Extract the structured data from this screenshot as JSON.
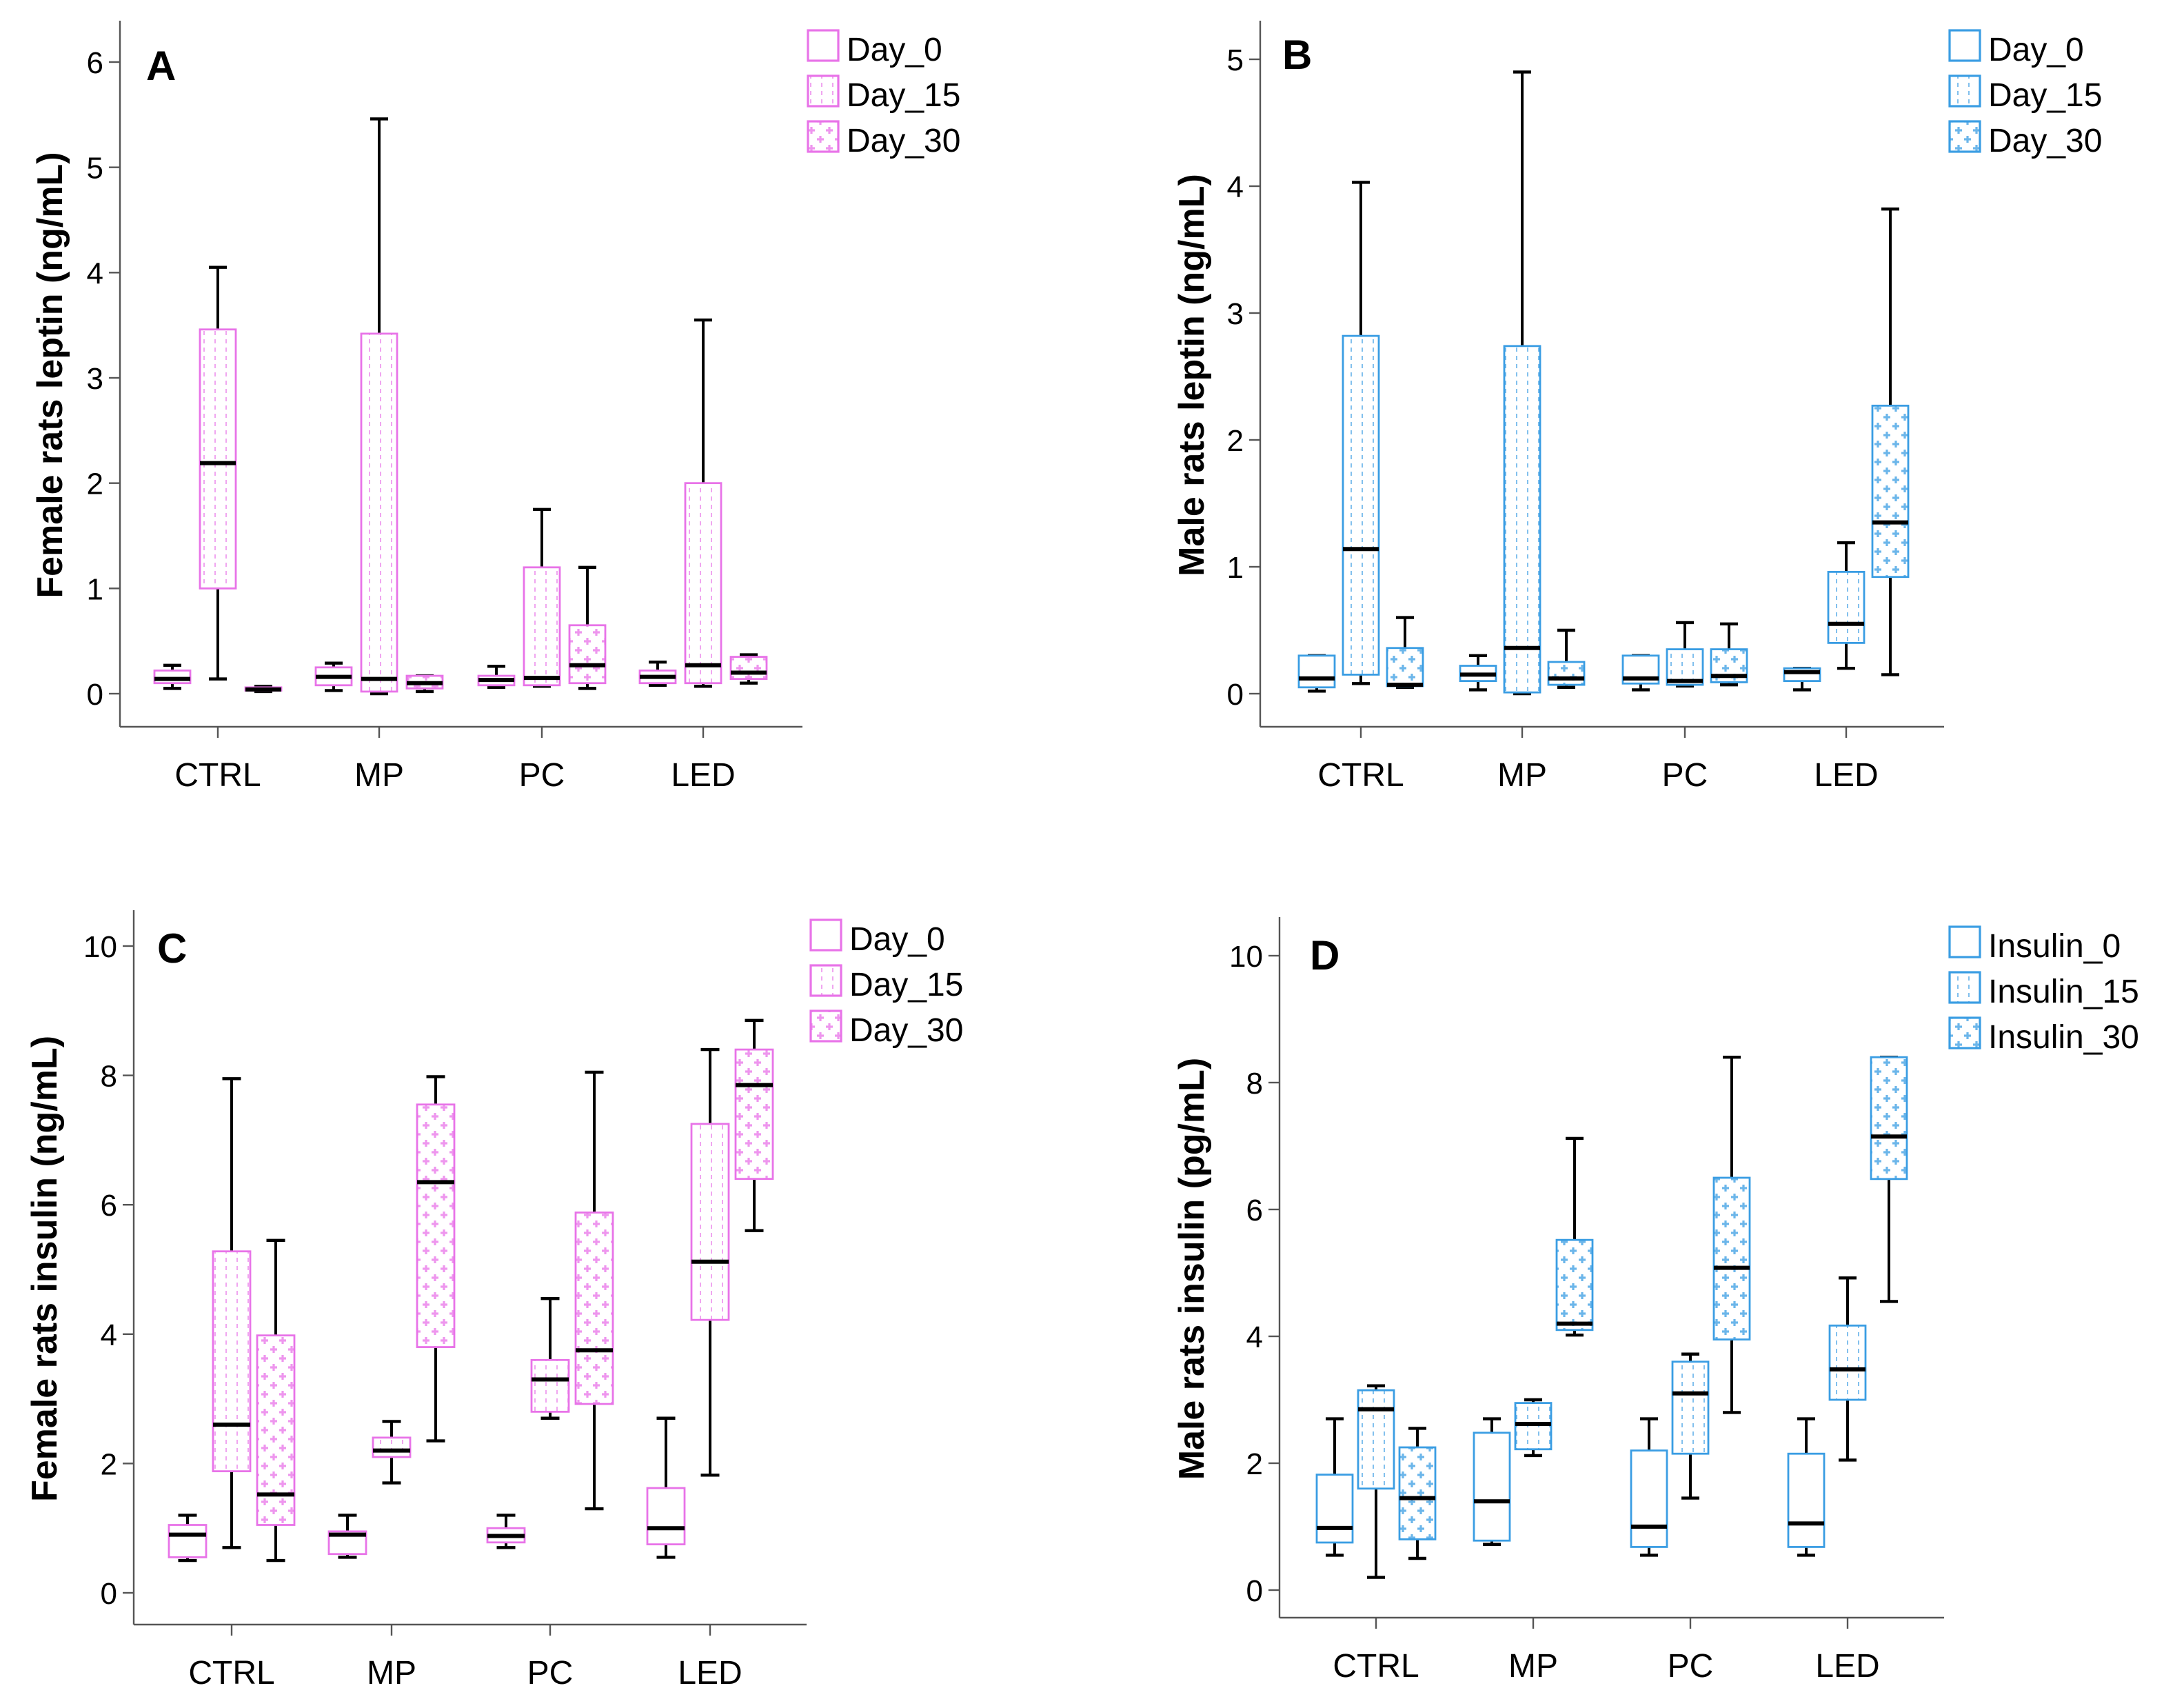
{
  "colors": {
    "female": "#e873e8",
    "male": "#3a9de3",
    "median": "#000000",
    "axis": "#555555"
  },
  "chart_data": [
    {
      "type": "boxplot",
      "panel": "A",
      "theme": "female",
      "ylabel": "Female rats leptin (ng/mL)",
      "ylim": [
        0,
        6
      ],
      "yticks": [
        0,
        1,
        2,
        3,
        4,
        5,
        6
      ],
      "categories": [
        "CTRL",
        "MP",
        "PC",
        "LED"
      ],
      "legend": [
        "Day_0",
        "Day_15",
        "Day_30"
      ],
      "legend_placement": "top-right",
      "series": [
        {
          "name": "Day_0",
          "boxes": [
            [
              0.05,
              0.1,
              0.14,
              0.22,
              0.27
            ],
            [
              0.03,
              0.08,
              0.16,
              0.25,
              0.29
            ],
            [
              0.06,
              0.08,
              0.13,
              0.17,
              0.26
            ],
            [
              0.08,
              0.1,
              0.16,
              0.22,
              0.3
            ]
          ]
        },
        {
          "name": "Day_15",
          "boxes": [
            [
              0.14,
              1.0,
              2.19,
              3.46,
              4.05
            ],
            [
              0.0,
              0.02,
              0.14,
              3.42,
              5.46
            ],
            [
              0.07,
              0.08,
              0.15,
              1.2,
              1.75
            ],
            [
              0.07,
              0.1,
              0.27,
              2.0,
              3.55
            ]
          ]
        },
        {
          "name": "Day_30",
          "boxes": [
            [
              0.02,
              0.03,
              0.04,
              0.06,
              0.07
            ],
            [
              0.02,
              0.05,
              0.1,
              0.17,
              0.17
            ],
            [
              0.05,
              0.1,
              0.27,
              0.65,
              1.2
            ],
            [
              0.1,
              0.14,
              0.2,
              0.35,
              0.37
            ]
          ]
        }
      ]
    },
    {
      "type": "boxplot",
      "panel": "B",
      "theme": "male",
      "ylabel": "Male rats leptin (ng/mL)",
      "ylim": [
        0,
        5
      ],
      "yticks": [
        0,
        1,
        2,
        3,
        4,
        5
      ],
      "categories": [
        "CTRL",
        "MP",
        "PC",
        "LED"
      ],
      "legend": [
        "Day_0",
        "Day_15",
        "Day_30"
      ],
      "legend_placement": "top-right",
      "series": [
        {
          "name": "Day_0",
          "boxes": [
            [
              0.02,
              0.05,
              0.12,
              0.3,
              0.3
            ],
            [
              0.03,
              0.1,
              0.15,
              0.22,
              0.3
            ],
            [
              0.03,
              0.08,
              0.12,
              0.3,
              0.3
            ],
            [
              0.03,
              0.1,
              0.17,
              0.2,
              0.2
            ]
          ]
        },
        {
          "name": "Day_15",
          "boxes": [
            [
              0.08,
              0.15,
              1.14,
              2.82,
              4.03
            ],
            [
              0.0,
              0.01,
              0.36,
              2.74,
              4.9
            ],
            [
              0.06,
              0.07,
              0.1,
              0.35,
              0.56
            ],
            [
              0.2,
              0.4,
              0.55,
              0.96,
              1.19
            ]
          ]
        },
        {
          "name": "Day_30",
          "boxes": [
            [
              0.05,
              0.06,
              0.07,
              0.36,
              0.6
            ],
            [
              0.05,
              0.07,
              0.12,
              0.25,
              0.5
            ],
            [
              0.07,
              0.09,
              0.14,
              0.35,
              0.55
            ],
            [
              0.15,
              0.92,
              1.35,
              2.27,
              3.82
            ]
          ]
        }
      ]
    },
    {
      "type": "boxplot",
      "panel": "C",
      "theme": "female",
      "ylabel": "Female rats insulin (ng/mL)",
      "ylim": [
        0,
        10
      ],
      "yticks": [
        0,
        2,
        4,
        6,
        8,
        10
      ],
      "categories": [
        "CTRL",
        "MP",
        "PC",
        "LED"
      ],
      "legend": [
        "Day_0",
        "Day_15",
        "Day_30"
      ],
      "legend_placement": "top-right",
      "series": [
        {
          "name": "Day_0",
          "boxes": [
            [
              0.5,
              0.55,
              0.9,
              1.05,
              1.2
            ],
            [
              0.55,
              0.6,
              0.9,
              0.95,
              1.2
            ],
            [
              0.7,
              0.78,
              0.88,
              1.0,
              1.2
            ],
            [
              0.55,
              0.75,
              1.0,
              1.62,
              2.7
            ]
          ]
        },
        {
          "name": "Day_15",
          "boxes": [
            [
              0.7,
              1.88,
              2.6,
              5.28,
              7.95
            ],
            [
              1.7,
              2.1,
              2.2,
              2.4,
              2.65
            ],
            [
              2.7,
              2.8,
              3.3,
              3.6,
              4.55
            ],
            [
              1.82,
              4.22,
              5.12,
              7.25,
              8.4
            ]
          ]
        },
        {
          "name": "Day_30",
          "boxes": [
            [
              0.5,
              1.05,
              1.52,
              3.98,
              5.45
            ],
            [
              2.35,
              3.8,
              6.35,
              7.55,
              7.98
            ],
            [
              1.3,
              2.92,
              3.75,
              5.88,
              8.05
            ],
            [
              5.6,
              6.4,
              7.85,
              8.4,
              8.85
            ]
          ]
        }
      ]
    },
    {
      "type": "boxplot",
      "panel": "D",
      "theme": "male",
      "ylabel": "Male rats insulin (pg/mL)",
      "ylim": [
        0,
        10
      ],
      "yticks": [
        0,
        2,
        4,
        6,
        8,
        10
      ],
      "categories": [
        "CTRL",
        "MP",
        "PC",
        "LED"
      ],
      "legend": [
        "Insulin_0",
        "Insulin_15",
        "Insulin_30"
      ],
      "legend_placement": "top-right",
      "series": [
        {
          "name": "Insulin_0",
          "boxes": [
            [
              0.55,
              0.75,
              0.98,
              1.82,
              2.7
            ],
            [
              0.72,
              0.78,
              1.4,
              2.48,
              2.7
            ],
            [
              0.55,
              0.68,
              1.0,
              2.2,
              2.7
            ],
            [
              0.55,
              0.68,
              1.05,
              2.15,
              2.7
            ]
          ]
        },
        {
          "name": "Insulin_15",
          "boxes": [
            [
              0.2,
              1.6,
              2.85,
              3.15,
              3.22
            ],
            [
              2.12,
              2.22,
              2.62,
              2.95,
              3.0
            ],
            [
              1.45,
              2.15,
              3.1,
              3.6,
              3.72
            ],
            [
              2.05,
              3.0,
              3.48,
              4.17,
              4.92
            ]
          ]
        },
        {
          "name": "Insulin_30",
          "boxes": [
            [
              0.5,
              0.8,
              1.45,
              2.25,
              2.55
            ],
            [
              4.02,
              4.1,
              4.2,
              5.52,
              7.12
            ],
            [
              2.8,
              3.95,
              5.08,
              6.5,
              8.4
            ],
            [
              4.55,
              6.48,
              7.15,
              8.4,
              8.4
            ]
          ]
        }
      ]
    }
  ]
}
